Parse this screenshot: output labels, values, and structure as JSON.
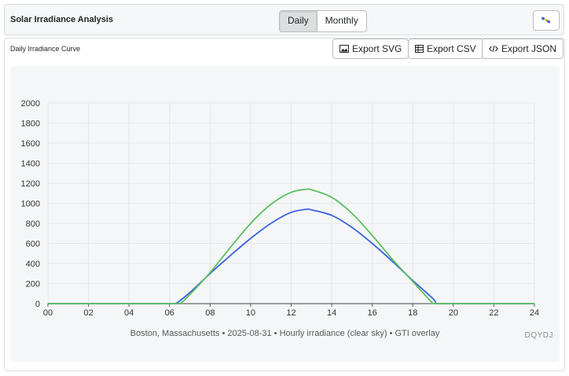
{
  "header": {
    "title": "Solar Irradiance Analysis",
    "tabs": [
      {
        "label": "Daily",
        "active": true
      },
      {
        "label": "Monthly",
        "active": false
      }
    ],
    "theme_icon": "satellite-icon"
  },
  "panel": {
    "title": "Daily Irradiance Curve",
    "exports": [
      {
        "label": "Export SVG",
        "icon": "image-icon"
      },
      {
        "label": "Export CSV",
        "icon": "table-icon"
      },
      {
        "label": "Export JSON",
        "icon": "code-icon"
      }
    ],
    "caption": "Boston, Massachusetts • 2025-08-31 • Hourly irradiance (clear sky) • GTI overlay",
    "watermark": "DQYDJ"
  },
  "colors": {
    "series_blue": "#3b63e0",
    "series_green": "#5cbf60",
    "grid": "#e4e6e8"
  },
  "chart_data": {
    "type": "line",
    "xlim": [
      0,
      24
    ],
    "ylim": [
      0,
      2000
    ],
    "x_ticks": [
      "00",
      "02",
      "04",
      "06",
      "08",
      "10",
      "12",
      "14",
      "16",
      "18",
      "20",
      "22",
      "24"
    ],
    "y_ticks": [
      "0",
      "200",
      "400",
      "600",
      "800",
      "1000",
      "1200",
      "1400",
      "1600",
      "1800",
      "2000"
    ],
    "grid": true,
    "series": [
      {
        "color": "#3b63e0",
        "x": [
          0,
          6,
          6.3,
          7,
          8,
          9,
          10,
          11,
          12,
          12.75,
          13,
          14,
          15,
          16,
          17,
          18,
          19,
          19.2,
          20,
          24
        ],
        "y": [
          0,
          0,
          0,
          110,
          300,
          480,
          650,
          800,
          910,
          940,
          935,
          880,
          760,
          600,
          420,
          230,
          50,
          0,
          0,
          0
        ]
      },
      {
        "color": "#5cbf60",
        "x": [
          0,
          6,
          6.5,
          7,
          8,
          9,
          10,
          11,
          12,
          12.75,
          13,
          14,
          15,
          16,
          17,
          18,
          18.9,
          19,
          20,
          24
        ],
        "y": [
          0,
          0,
          0,
          90,
          310,
          560,
          800,
          990,
          1110,
          1140,
          1135,
          1060,
          900,
          680,
          440,
          220,
          20,
          0,
          0,
          0
        ]
      }
    ]
  }
}
